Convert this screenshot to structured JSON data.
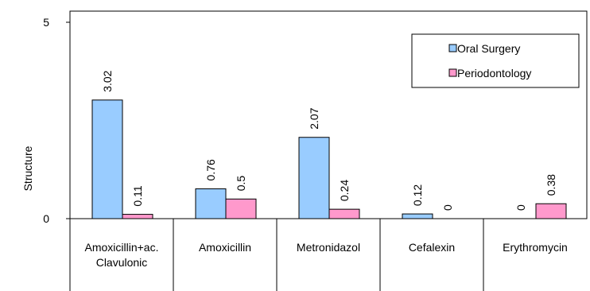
{
  "chart_data": {
    "type": "bar",
    "categories": [
      [
        "Amoxicillin+ac.",
        "Clavulonic"
      ],
      [
        "Amoxicillin"
      ],
      [
        "Metronidazol"
      ],
      [
        "Cefalexin"
      ],
      [
        "Erythromycin"
      ]
    ],
    "series": [
      {
        "name": "Oral Surgery",
        "color": "#99CCFF",
        "values": [
          3.02,
          0.76,
          2.07,
          0.12,
          0
        ]
      },
      {
        "name": "Periodontology",
        "color": "#FF99CC",
        "values": [
          0.11,
          0.5,
          0.24,
          0,
          0.38
        ]
      }
    ],
    "ylabel": "Structure",
    "ylim": [
      0,
      5
    ],
    "yticks": [
      0,
      5
    ],
    "data_labels": [
      [
        "3.02",
        "0.76",
        "2.07",
        "0.12",
        "0"
      ],
      [
        "0.11",
        "0.5",
        "0.24",
        "0",
        "0.38"
      ]
    ],
    "grid": false,
    "legend_position": "top-right"
  }
}
